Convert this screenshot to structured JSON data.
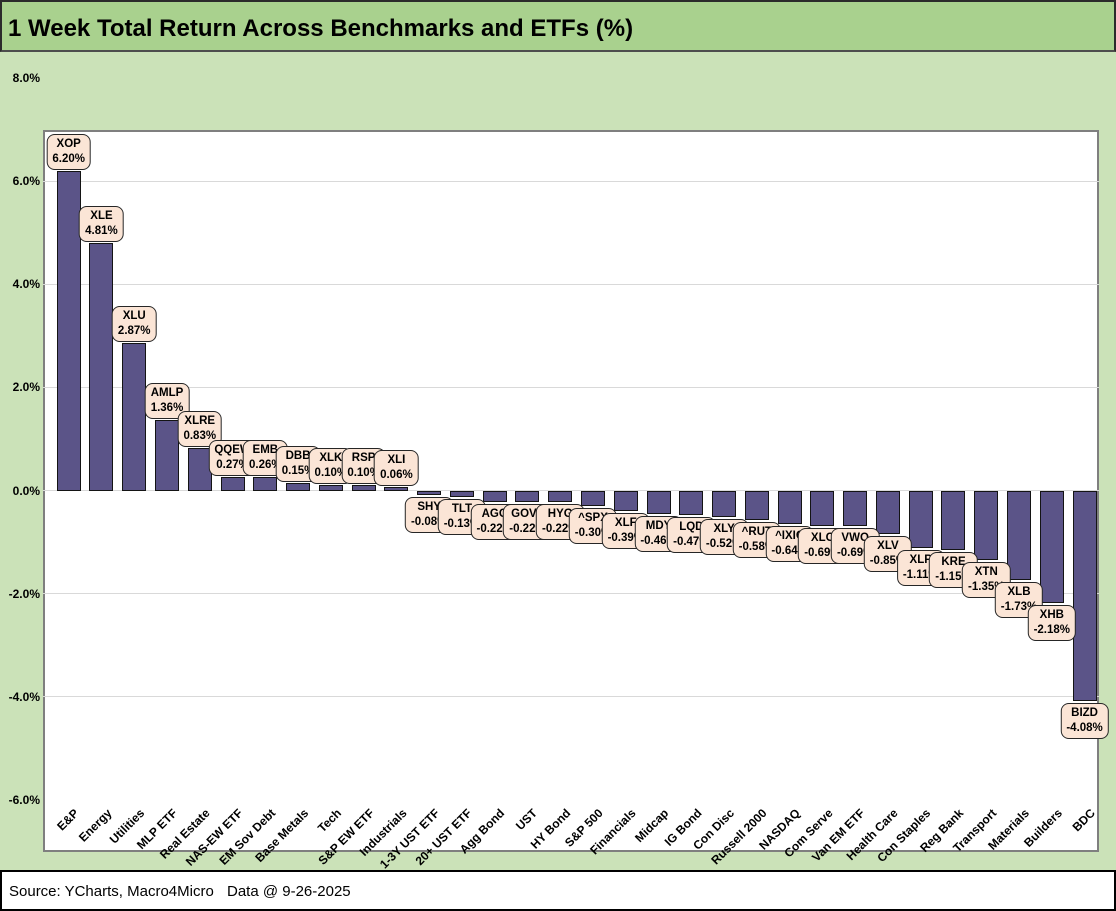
{
  "title": "1 Week Total Return Across Benchmarks and ETFs (%)",
  "footer": {
    "source": "Source: YCharts, Macro4Micro",
    "data_date": "Data @ 9-26-2025"
  },
  "colors": {
    "title_band_bg": "#a9d18e",
    "body_bg": "#cbe2b8",
    "plot_bg": "#ffffff",
    "bar_fill": "#5b5488",
    "bar_border": "#141414",
    "callout_bg": "#fbe5d6",
    "callout_border": "#262626",
    "gridline": "#d9d9d9",
    "plot_border": "#7f7f7f"
  },
  "chart_data": {
    "type": "bar",
    "title": "1 Week Total Return Across Benchmarks and ETFs (%)",
    "xlabel": "",
    "ylabel": "",
    "ylim": [
      -6.0,
      8.0
    ],
    "ytick_step": 2.0,
    "ytick_labels": [
      "8.0%",
      "6.0%",
      "4.0%",
      "2.0%",
      "0.0%",
      "-2.0%",
      "-4.0%",
      "-6.0%"
    ],
    "grid": true,
    "legend": "none",
    "series_name": "1 Week Total Return (%)",
    "points": [
      {
        "category": "E&P",
        "ticker": "XOP",
        "value": 6.2,
        "label": "6.20%"
      },
      {
        "category": "Energy",
        "ticker": "XLE",
        "value": 4.81,
        "label": "4.81%"
      },
      {
        "category": "Utilities",
        "ticker": "XLU",
        "value": 2.87,
        "label": "2.87%"
      },
      {
        "category": "MLP ETF",
        "ticker": "AMLP",
        "value": 1.36,
        "label": "1.36%"
      },
      {
        "category": "Real Estate",
        "ticker": "XLRE",
        "value": 0.83,
        "label": "0.83%"
      },
      {
        "category": "NAS-EW ETF",
        "ticker": "QQEW",
        "value": 0.27,
        "label": "0.27%"
      },
      {
        "category": "EM Sov Debt",
        "ticker": "EMB",
        "value": 0.26,
        "label": "0.26%"
      },
      {
        "category": "Base Metals",
        "ticker": "DBB",
        "value": 0.15,
        "label": "0.15%"
      },
      {
        "category": "Tech",
        "ticker": "XLK",
        "value": 0.1,
        "label": "0.10%"
      },
      {
        "category": "S&P EW ETF",
        "ticker": "RSP",
        "value": 0.1,
        "label": "0.10%"
      },
      {
        "category": "Industrials",
        "ticker": "XLI",
        "value": 0.06,
        "label": "0.06%"
      },
      {
        "category": "1-3Y UST ETF",
        "ticker": "SHY",
        "value": -0.08,
        "label": "-0.08%"
      },
      {
        "category": "20+ UST ETF",
        "ticker": "TLT",
        "value": -0.13,
        "label": "-0.13%"
      },
      {
        "category": "Agg Bond",
        "ticker": "AGG",
        "value": -0.22,
        "label": "-0.22%"
      },
      {
        "category": "UST",
        "ticker": "GOVT",
        "value": -0.22,
        "label": "-0.22%"
      },
      {
        "category": "HY Bond",
        "ticker": "HYG",
        "value": -0.22,
        "label": "-0.22%"
      },
      {
        "category": "S&P 500",
        "ticker": "^SPX",
        "value": -0.3,
        "label": "-0.30%"
      },
      {
        "category": "Financials",
        "ticker": "XLF",
        "value": -0.39,
        "label": "-0.39%"
      },
      {
        "category": "Midcap",
        "ticker": "MDY",
        "value": -0.46,
        "label": "-0.46%"
      },
      {
        "category": "IG Bond",
        "ticker": "LQD",
        "value": -0.47,
        "label": "-0.47%"
      },
      {
        "category": "Con Disc",
        "ticker": "XLY",
        "value": -0.52,
        "label": "-0.52%"
      },
      {
        "category": "Russell 2000",
        "ticker": "^RUT",
        "value": -0.58,
        "label": "-0.58%"
      },
      {
        "category": "NASDAQ",
        "ticker": "^IXIC",
        "value": -0.64,
        "label": "-0.64%"
      },
      {
        "category": "Com Serve",
        "ticker": "XLC",
        "value": -0.69,
        "label": "-0.69%"
      },
      {
        "category": "Van EM ETF",
        "ticker": "VWO",
        "value": -0.69,
        "label": "-0.69%"
      },
      {
        "category": "Health Care",
        "ticker": "XLV",
        "value": -0.85,
        "label": "-0.85%"
      },
      {
        "category": "Con Staples",
        "ticker": "XLP",
        "value": -1.11,
        "label": "-1.11%"
      },
      {
        "category": "Reg Bank",
        "ticker": "KRE",
        "value": -1.15,
        "label": "-1.15%"
      },
      {
        "category": "Transport",
        "ticker": "XTN",
        "value": -1.35,
        "label": "-1.35%"
      },
      {
        "category": "Materials",
        "ticker": "XLB",
        "value": -1.73,
        "label": "-1.73%"
      },
      {
        "category": "Builders",
        "ticker": "XHB",
        "value": -2.18,
        "label": "-2.18%"
      },
      {
        "category": "BDC",
        "ticker": "BIZD",
        "value": -4.08,
        "label": "-4.08%"
      }
    ]
  }
}
